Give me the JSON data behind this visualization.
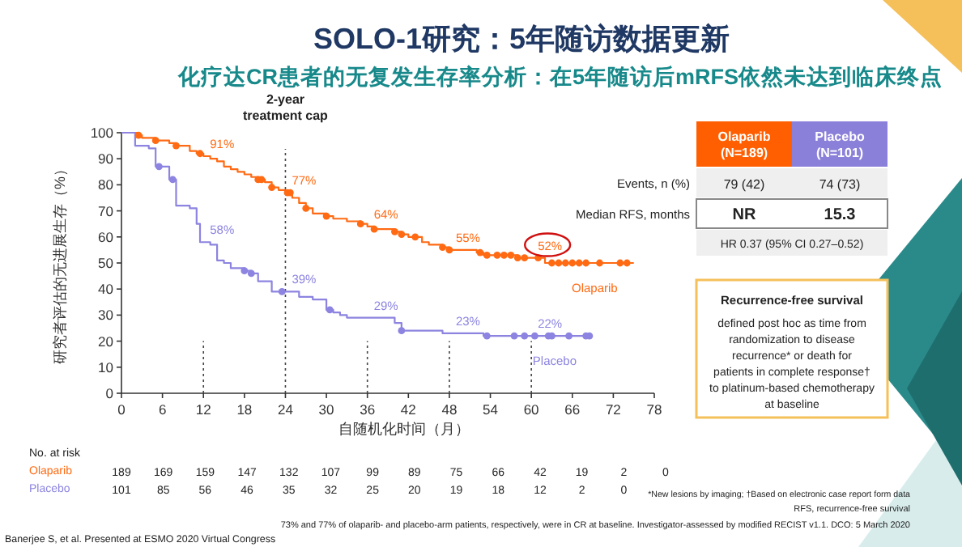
{
  "chart_data": [
    {
      "type": "step",
      "title": "SOLO-1研究：5年随访数据更新",
      "subtitle": "化疗达CR患者的无复发生存率分析：在5年随访后mRFS依然未达到临床终点",
      "xlabel": "自随机化时间（月）",
      "ylabel": "研究者评估的无进展生存（%）",
      "xlim": [
        0,
        78
      ],
      "xticks": [
        0,
        6,
        12,
        18,
        24,
        30,
        36,
        42,
        48,
        54,
        60,
        66,
        72,
        78
      ],
      "ylim": [
        0,
        100
      ],
      "yticks": [
        0,
        10,
        20,
        30,
        40,
        50,
        60,
        70,
        80,
        90,
        100
      ],
      "grid": false,
      "series": [
        {
          "name": "Olaparib",
          "color": "#ff6a13",
          "x": [
            0,
            2.5,
            3,
            5,
            7,
            8,
            10,
            11,
            12,
            13,
            14,
            15,
            16,
            17,
            18,
            19,
            20,
            21,
            22,
            23,
            24,
            25,
            26,
            27,
            28,
            30,
            31,
            33,
            35,
            36,
            37,
            40,
            41,
            42,
            44,
            45,
            47,
            48,
            52,
            53,
            58,
            60,
            62,
            75
          ],
          "values": [
            100,
            99,
            98,
            97,
            96,
            95,
            93,
            92,
            91,
            90,
            89,
            87,
            86,
            85,
            84,
            83,
            82,
            81,
            79,
            78,
            77,
            75,
            73,
            71,
            69,
            68,
            67,
            66,
            65,
            64,
            63,
            62,
            61,
            60,
            58,
            57,
            56,
            55,
            54,
            53,
            52,
            52,
            50,
            50
          ],
          "value_labels": [
            null,
            null,
            null,
            null,
            null,
            null,
            null,
            null,
            "91%",
            null,
            null,
            null,
            null,
            null,
            null,
            null,
            null,
            null,
            null,
            null,
            "77%",
            null,
            null,
            null,
            null,
            null,
            null,
            null,
            null,
            "64%",
            null,
            null,
            null,
            null,
            null,
            null,
            null,
            "55%",
            null,
            null,
            null,
            "52%",
            null,
            null
          ]
        },
        {
          "name": "Placebo",
          "color": "#8c84e0",
          "x": [
            0,
            2,
            4,
            5,
            7,
            8,
            10,
            11,
            11.5,
            12,
            13,
            14,
            15,
            16,
            18,
            19,
            20,
            22,
            24,
            26,
            28,
            30,
            31,
            32,
            33,
            36,
            40,
            41,
            47,
            48,
            53,
            60,
            69
          ],
          "values": [
            100,
            95,
            94,
            87,
            82,
            72,
            71,
            65,
            58,
            58,
            57,
            51,
            50,
            48,
            47,
            46,
            43,
            39,
            39,
            37,
            36,
            32,
            31,
            30,
            29,
            29,
            27,
            24,
            23,
            23,
            22,
            22,
            22
          ],
          "value_labels": [
            null,
            null,
            null,
            null,
            null,
            null,
            null,
            null,
            null,
            "58%",
            null,
            null,
            null,
            null,
            null,
            null,
            null,
            null,
            "39%",
            null,
            null,
            null,
            null,
            null,
            null,
            "29%",
            null,
            null,
            null,
            "23%",
            null,
            "22%",
            null
          ]
        },
        {
          "type": "scatter",
          "color": "#ff6a13",
          "marker": "circle",
          "x": [
            2.5,
            5,
            8,
            11.5,
            20,
            20.5,
            22,
            24.3,
            24.7,
            27,
            30,
            35,
            37,
            40,
            41,
            43,
            47,
            48,
            52.5,
            53.5,
            55,
            56,
            57,
            58,
            59,
            61,
            63,
            64,
            65,
            66,
            67,
            68,
            70,
            73,
            74
          ],
          "values": [
            99,
            97,
            95,
            92,
            82,
            82,
            79,
            77,
            77,
            71,
            68,
            65,
            63,
            62,
            61,
            60,
            56,
            55,
            54,
            53,
            53,
            53,
            53,
            52,
            52,
            52,
            50,
            50,
            50,
            50,
            50,
            50,
            50,
            50,
            50
          ]
        },
        {
          "type": "scatter",
          "color": "#8c84e0",
          "marker": "circle",
          "x": [
            5.5,
            7.5,
            18,
            19,
            23.5,
            30.5,
            41,
            53.5,
            57.5,
            59,
            60.5,
            62.5,
            63,
            65.5,
            68,
            68.5
          ],
          "values": [
            87,
            82,
            47,
            46,
            39,
            32,
            24,
            22,
            22,
            22,
            22,
            22,
            22,
            22,
            22,
            22
          ]
        }
      ],
      "ref_lines": [
        {
          "axis": "x",
          "value": 12,
          "line_style": "dotted",
          "color": "#444444"
        },
        {
          "axis": "x",
          "value": 24,
          "label": "2-year\ntreatment cap",
          "line_style": "dotted",
          "color": "#444444"
        },
        {
          "axis": "x",
          "value": 36,
          "line_style": "dotted",
          "color": "#444444"
        },
        {
          "axis": "x",
          "value": 48,
          "line_style": "dotted",
          "color": "#444444"
        },
        {
          "axis": "x",
          "value": 60,
          "line_style": "dotted",
          "color": "#444444"
        }
      ],
      "annotations": [
        "*New lesions by imaging; †Based on electronic case report form data",
        "RFS, recurrence-free survival",
        "73% and 77% of olaparib- and placebo-arm patients, respectively, were in CR at baseline. Investigator-assessed by modified RECIST v1.1. DCO: 5 March 2020",
        "Banerjee S, et al. Presented at ESMO 2020 Virtual Congress"
      ]
    },
    {
      "type": "other",
      "title": "No. at risk",
      "series": [
        {
          "name": "Olaparib",
          "color": "#ff6a13"
        },
        {
          "name": "Placebo",
          "color": "#8c84e0"
        }
      ],
      "annotations": [
        "189",
        "169",
        "159",
        "147",
        "132",
        "107",
        "99",
        "89",
        "75",
        "66",
        "42",
        "19",
        "2",
        "0",
        "101",
        "85",
        "56",
        "46",
        "35",
        "32",
        "25",
        "20",
        "19",
        "18",
        "12",
        "2",
        "0"
      ]
    },
    {
      "type": "other",
      "categories": [
        "Olaparib\n(N=189)",
        "Placebo\n(N=101)"
      ],
      "colors": [
        "#ff5f00",
        "#8b80d9"
      ],
      "annotations": [
        "Events, n (%)",
        "79 (42)",
        "74 (73)",
        "Median RFS, months",
        "NR",
        "15.3",
        "HR 0.37 (95% CI 0.27–0.52)"
      ]
    },
    {
      "type": "other",
      "title": "Recurrence-free survival",
      "annotations": [
        "defined post hoc as time from randomization to disease recurrence* or death for patients in complete response† to platinum-based chemotherapy at baseline"
      ]
    }
  ]
}
